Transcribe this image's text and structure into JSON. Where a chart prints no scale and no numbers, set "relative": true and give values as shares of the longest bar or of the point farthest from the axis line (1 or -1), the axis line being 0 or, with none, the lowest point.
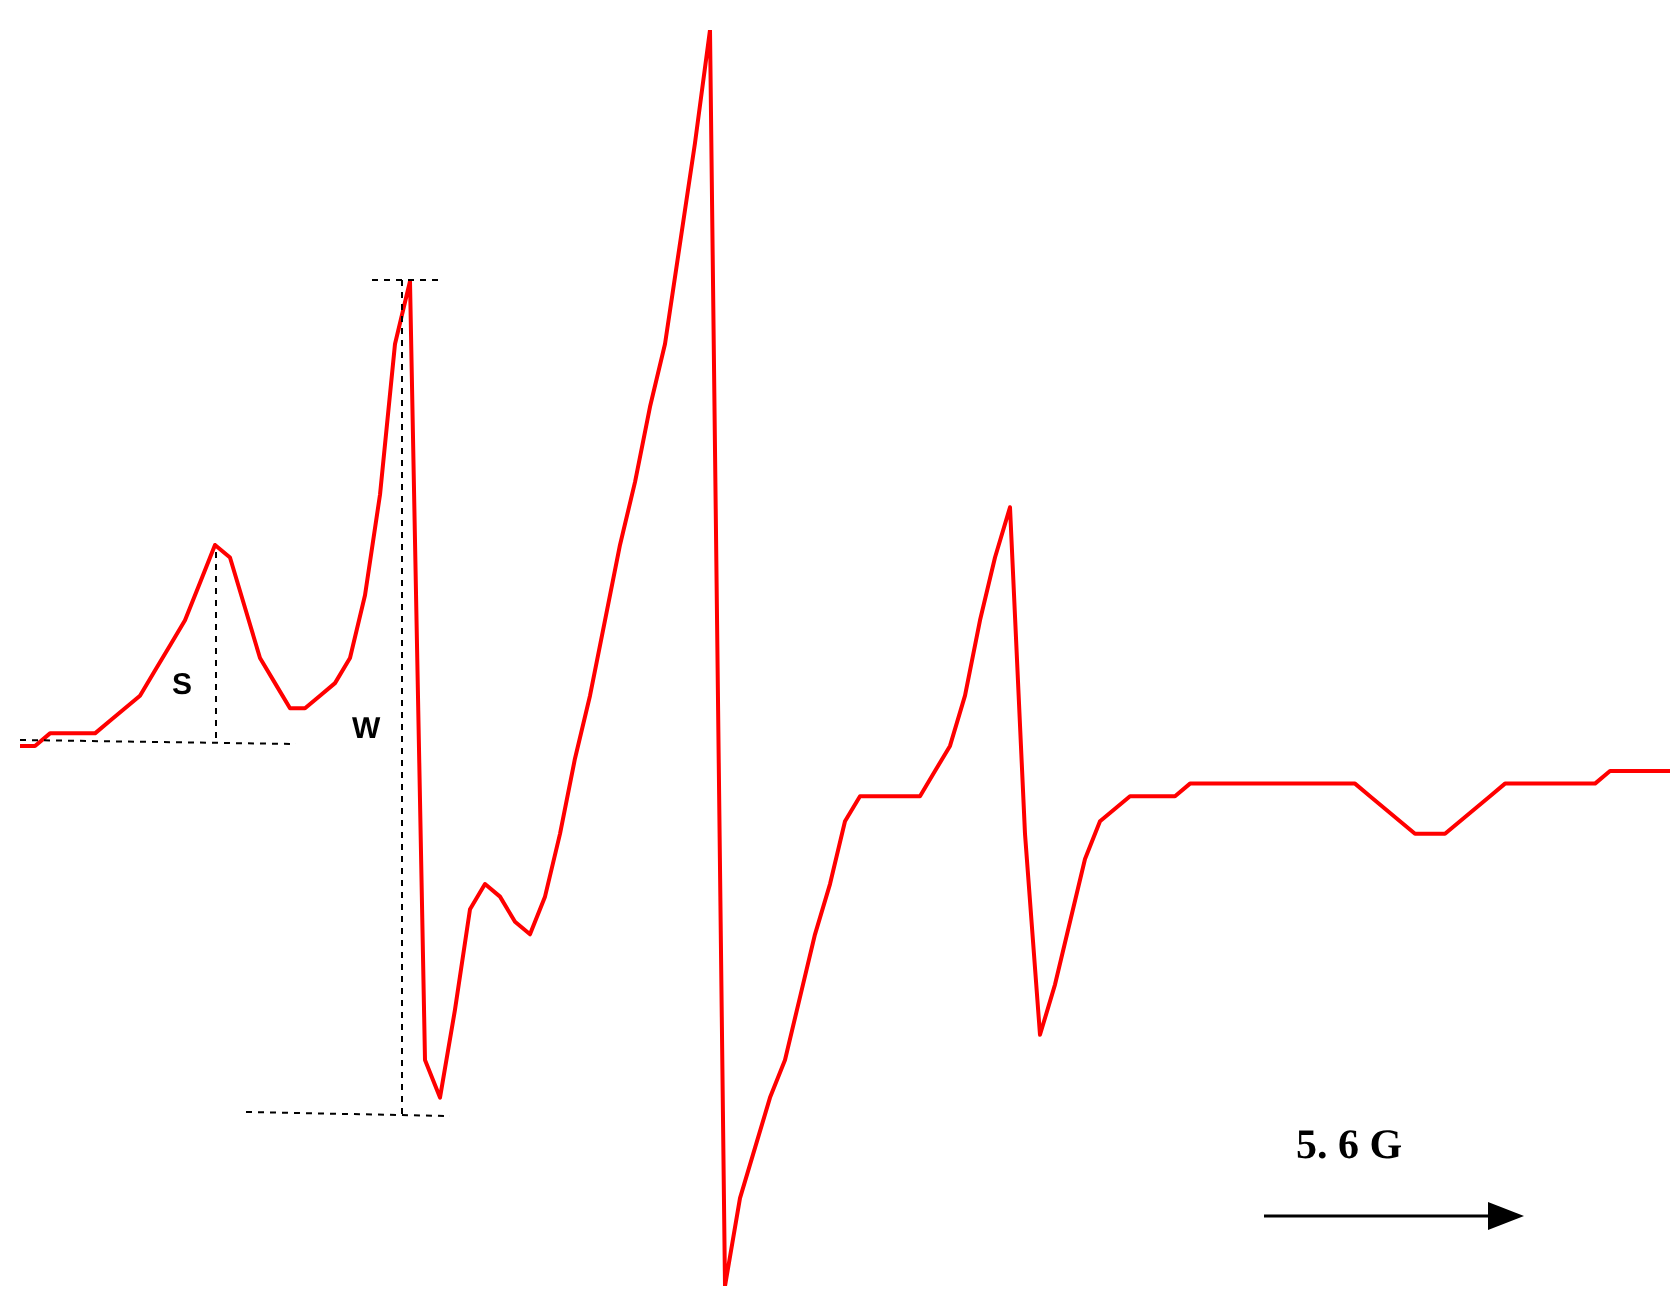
{
  "chart_data": {
    "type": "line",
    "relative": true,
    "categories": [
      null,
      null,
      null,
      null,
      null,
      null,
      null,
      null,
      null,
      null,
      null,
      null,
      null,
      null,
      null,
      null,
      null,
      null,
      null,
      null,
      null,
      null,
      null,
      null,
      null,
      null,
      null,
      null,
      null,
      null,
      null,
      null,
      null,
      null,
      null,
      null,
      null,
      null,
      null,
      null,
      null,
      null,
      null,
      null,
      null,
      null,
      null,
      null,
      null,
      null,
      null,
      null,
      null,
      null,
      null,
      null,
      null,
      null,
      null,
      null,
      null,
      null,
      null,
      null,
      null,
      null,
      null,
      null,
      null,
      null,
      null,
      null,
      null,
      null,
      null,
      null,
      null,
      null,
      null,
      null,
      null,
      null,
      null,
      null,
      null,
      null,
      null,
      null,
      null,
      null,
      null,
      null,
      null,
      null,
      null,
      null,
      null,
      null,
      null,
      null,
      null,
      null,
      null,
      null,
      null,
      null,
      null,
      null,
      null,
      null,
      null
    ],
    "series": [
      {
        "color": "#ff0000",
        "values": [
          0.43,
          0.43,
          0.44,
          0.44,
          0.44,
          0.44,
          0.45,
          0.46,
          0.47,
          0.49,
          0.51,
          0.53,
          0.56,
          0.59,
          0.58,
          0.54,
          0.5,
          0.48,
          0.46,
          0.46,
          0.47,
          0.48,
          0.5,
          0.55,
          0.63,
          0.75,
          0.8,
          0.18,
          0.15,
          0.22,
          0.3,
          0.32,
          0.31,
          0.29,
          0.28,
          0.31,
          0.36,
          0.42,
          0.47,
          0.53,
          0.59,
          0.64,
          0.7,
          0.75,
          0.83,
          0.91,
          1.0,
          0.0,
          0.07,
          0.11,
          0.15,
          0.18,
          0.23,
          0.28,
          0.32,
          0.37,
          0.39,
          0.39,
          0.39,
          0.39,
          0.39,
          0.41,
          0.43,
          0.47,
          0.53,
          0.58,
          0.62,
          0.36,
          0.2,
          0.24,
          0.29,
          0.34,
          0.37,
          0.38,
          0.39,
          0.39,
          0.39,
          0.39,
          0.4,
          0.4,
          0.4,
          0.4,
          0.4,
          0.4,
          0.4,
          0.4,
          0.4,
          0.4,
          0.4,
          0.4,
          0.39,
          0.38,
          0.37,
          0.36,
          0.36,
          0.36,
          0.37,
          0.38,
          0.39,
          0.4,
          0.4,
          0.4,
          0.4,
          0.4,
          0.4,
          0.4,
          0.41,
          0.41,
          0.41,
          0.41,
          0.41
        ]
      }
    ],
    "annotations": [
      "S",
      "W",
      "5. 6 G"
    ]
  }
}
